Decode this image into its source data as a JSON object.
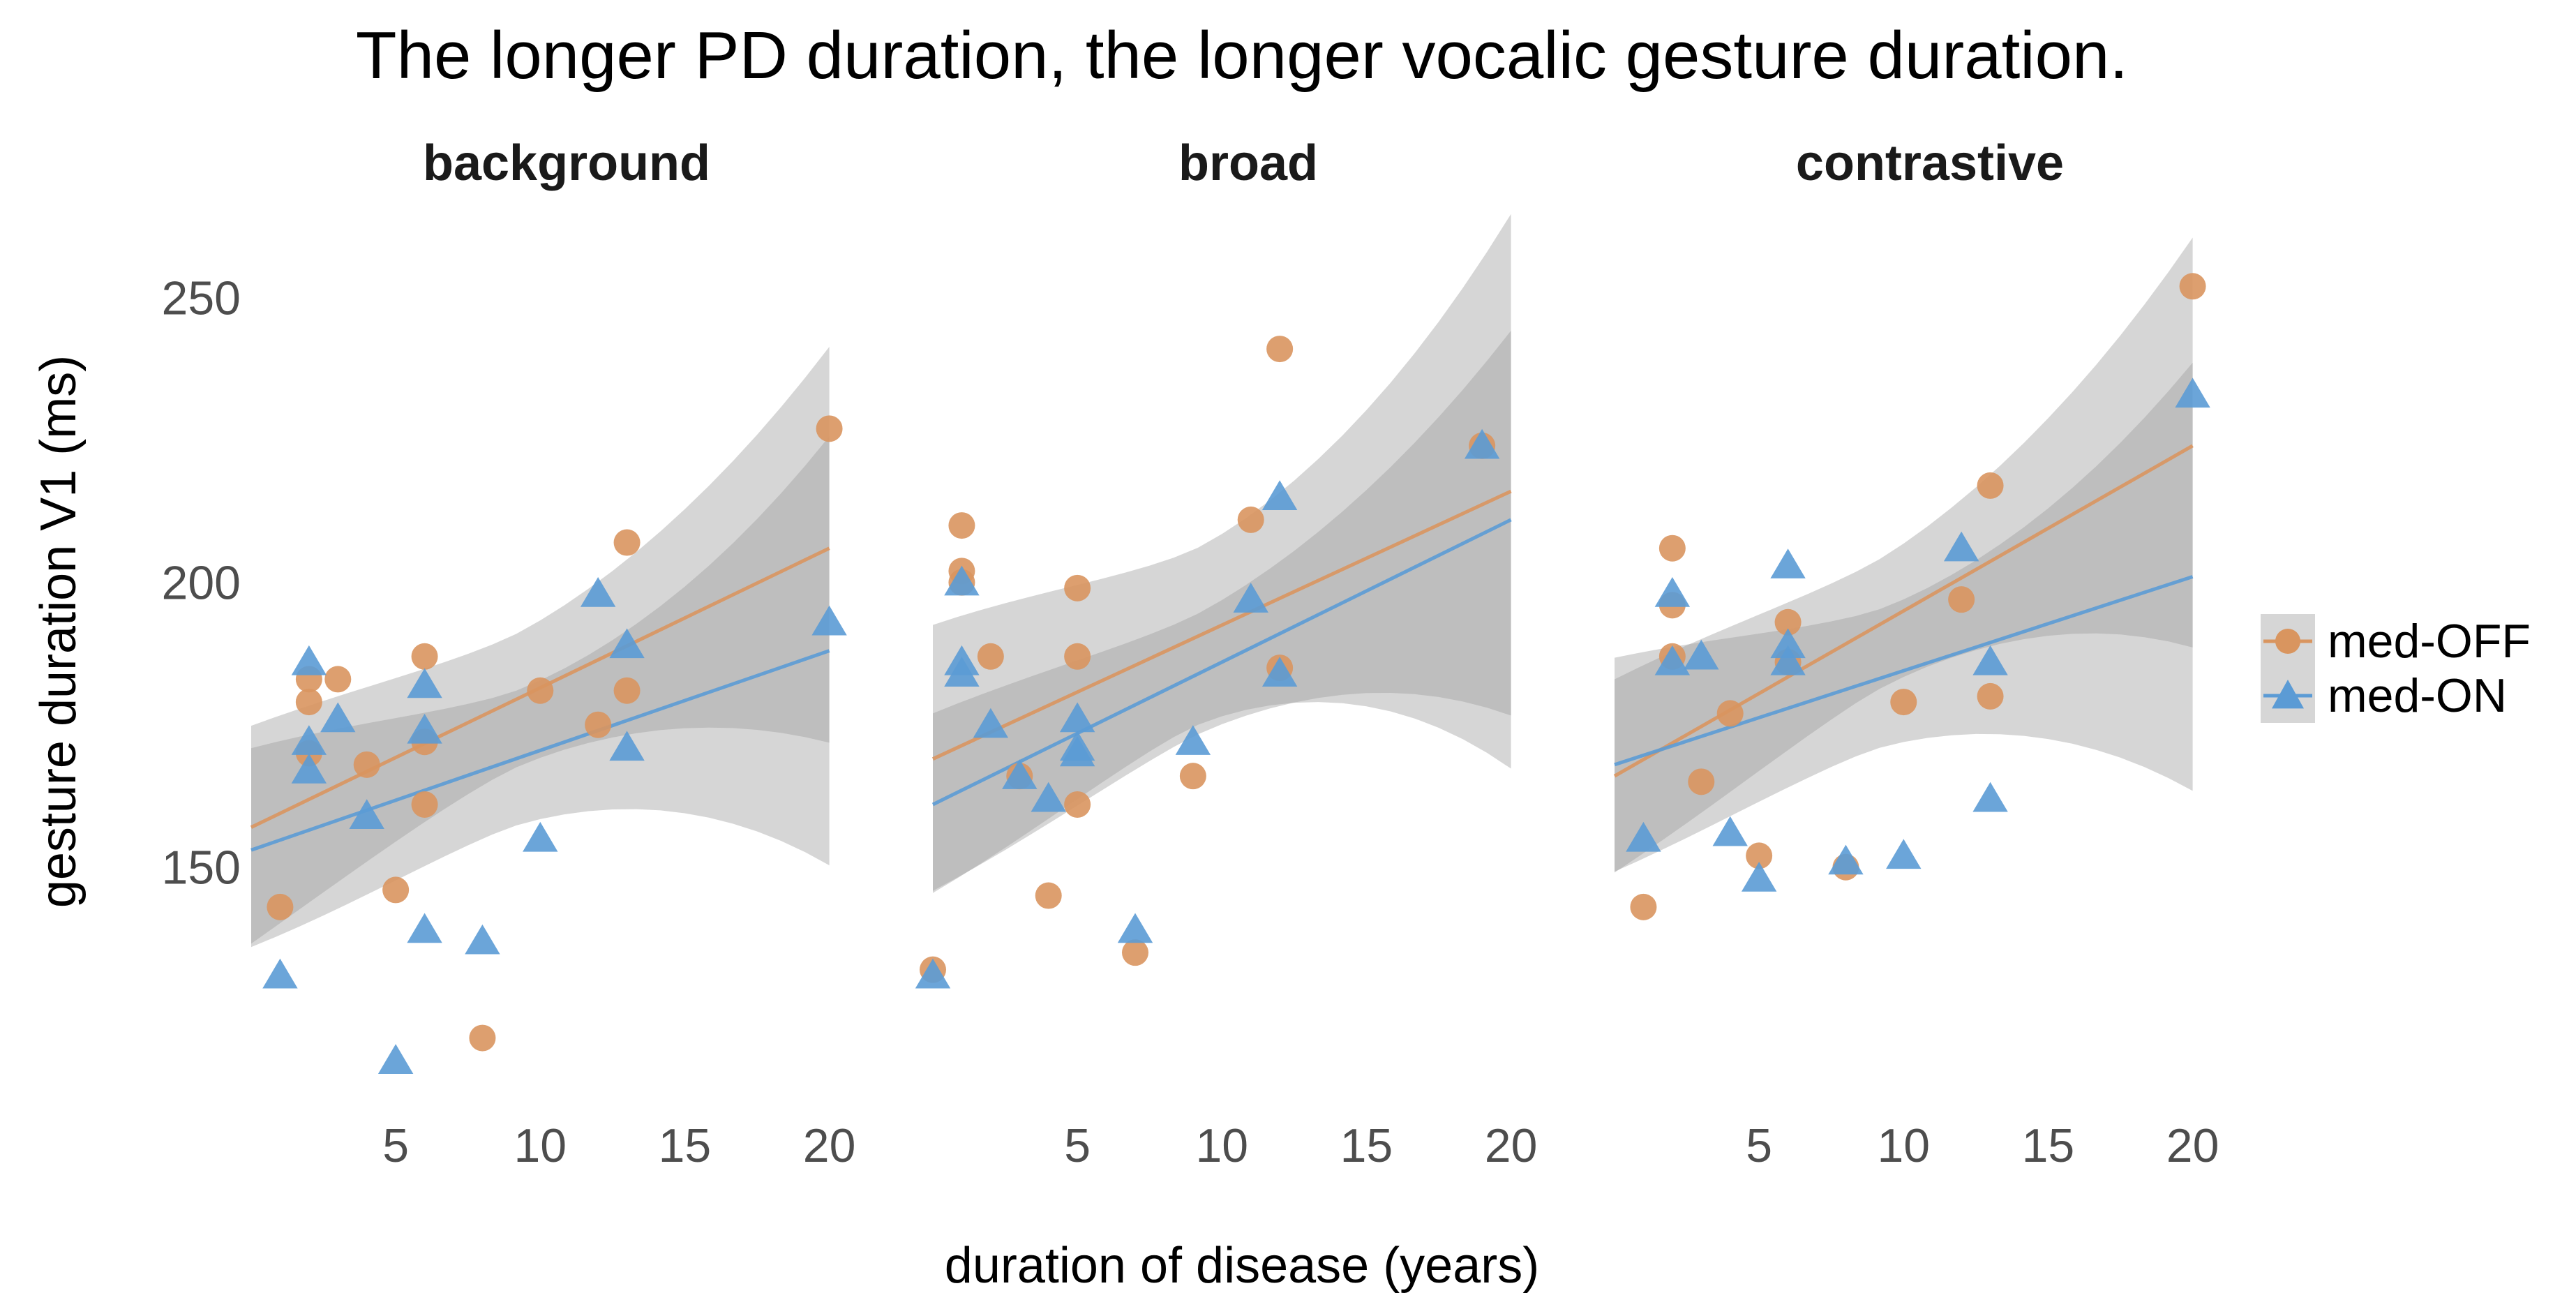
{
  "chart_data": {
    "type": "scatter",
    "title": "The longer PD duration, the longer vocalic gesture duration.",
    "xlabel": "duration of disease (years)",
    "ylabel": "gesture duration V1 (ms)",
    "xlim": [
      0,
      21
    ],
    "ylim": [
      105,
      260
    ],
    "x_ticks": [
      "5",
      "10",
      "15",
      "20"
    ],
    "y_ticks": [
      "150",
      "200",
      "250"
    ],
    "grid": false,
    "legend_position": "right",
    "legend": [
      {
        "name": "med-OFF",
        "color": "#D9955F",
        "marker": "circle"
      },
      {
        "name": "med-ON",
        "color": "#5B9BD5",
        "marker": "triangle"
      }
    ],
    "facets": [
      {
        "name": "background",
        "series": [
          {
            "name": "med-OFF",
            "points": [
              [
                1,
                143
              ],
              [
                2,
                183
              ],
              [
                2,
                179
              ],
              [
                2,
                170
              ],
              [
                3,
                183
              ],
              [
                4,
                168
              ],
              [
                5,
                146
              ],
              [
                6,
                187
              ],
              [
                6,
                172
              ],
              [
                6,
                161
              ],
              [
                8,
                120
              ],
              [
                10,
                181
              ],
              [
                12,
                175
              ],
              [
                13,
                207
              ],
              [
                13,
                181
              ],
              [
                20,
                227
              ]
            ],
            "fit": [
              157,
              206
            ],
            "band": {
              "lower": [
                135,
                175
              ],
              "upper": [
                176,
                238
              ]
            }
          },
          {
            "name": "med-ON",
            "points": [
              [
                1,
                131
              ],
              [
                2,
                186
              ],
              [
                2,
                172
              ],
              [
                2,
                167
              ],
              [
                3,
                176
              ],
              [
                4,
                159
              ],
              [
                5,
                116
              ],
              [
                6,
                182
              ],
              [
                6,
                174
              ],
              [
                6,
                139
              ],
              [
                8,
                137
              ],
              [
                10,
                155
              ],
              [
                12,
                198
              ],
              [
                13,
                189
              ],
              [
                13,
                171
              ],
              [
                20,
                193
              ]
            ],
            "fit": [
              153,
              188
            ],
            "band": {
              "lower": [
                135,
                154
              ],
              "upper": [
                172,
                222
              ]
            }
          }
        ]
      },
      {
        "name": "broad",
        "series": [
          {
            "name": "med-OFF",
            "points": [
              [
                0,
                132
              ],
              [
                1,
                210
              ],
              [
                1,
                202
              ],
              [
                1,
                200
              ],
              [
                2,
                187
              ],
              [
                3,
                166
              ],
              [
                4,
                145
              ],
              [
                5,
                199
              ],
              [
                5,
                187
              ],
              [
                5,
                161
              ],
              [
                7,
                135
              ],
              [
                9,
                166
              ],
              [
                11,
                211
              ],
              [
                12,
                241
              ],
              [
                12,
                185
              ],
              [
                19,
                224
              ]
            ],
            "fit": [
              169,
              216
            ],
            "band": {
              "lower": [
                144,
                172
              ],
              "upper": [
                194,
                260
              ]
            }
          },
          {
            "name": "med-ON",
            "points": [
              [
                0,
                131
              ],
              [
                1,
                200
              ],
              [
                1,
                186
              ],
              [
                1,
                184
              ],
              [
                2,
                175
              ],
              [
                3,
                166
              ],
              [
                4,
                162
              ],
              [
                5,
                176
              ],
              [
                5,
                171
              ],
              [
                5,
                170
              ],
              [
                7,
                139
              ],
              [
                9,
                172
              ],
              [
                11,
                197
              ],
              [
                12,
                215
              ],
              [
                12,
                184
              ],
              [
                19,
                224
              ]
            ],
            "fit": [
              161,
              211
            ],
            "band": {
              "lower": [
                145,
                180
              ],
              "upper": [
                178,
                241
              ]
            }
          }
        ]
      },
      {
        "name": "contrastive",
        "series": [
          {
            "name": "med-OFF",
            "points": [
              [
                1,
                143
              ],
              [
                2,
                206
              ],
              [
                2,
                196
              ],
              [
                2,
                187
              ],
              [
                3,
                165
              ],
              [
                4,
                177
              ],
              [
                5,
                152
              ],
              [
                6,
                193
              ],
              [
                6,
                186
              ],
              [
                8,
                150
              ],
              [
                10,
                179
              ],
              [
                12,
                197
              ],
              [
                13,
                217
              ],
              [
                13,
                180
              ],
              [
                20,
                252
              ]
            ],
            "fit": [
              166,
              224
            ],
            "band": {
              "lower": [
                148,
                192
              ],
              "upper": [
                184,
                257
              ]
            }
          },
          {
            "name": "med-ON",
            "points": [
              [
                1,
                155
              ],
              [
                2,
                198
              ],
              [
                2,
                186
              ],
              [
                3,
                187
              ],
              [
                4,
                156
              ],
              [
                5,
                148
              ],
              [
                6,
                203
              ],
              [
                6,
                189
              ],
              [
                6,
                186
              ],
              [
                8,
                151
              ],
              [
                10,
                152
              ],
              [
                12,
                206
              ],
              [
                13,
                186
              ],
              [
                13,
                162
              ],
              [
                20,
                233
              ]
            ],
            "fit": [
              168,
              201
            ],
            "band": {
              "lower": [
                148,
                167
              ],
              "upper": [
                188,
                235
              ]
            }
          }
        ]
      }
    ]
  }
}
